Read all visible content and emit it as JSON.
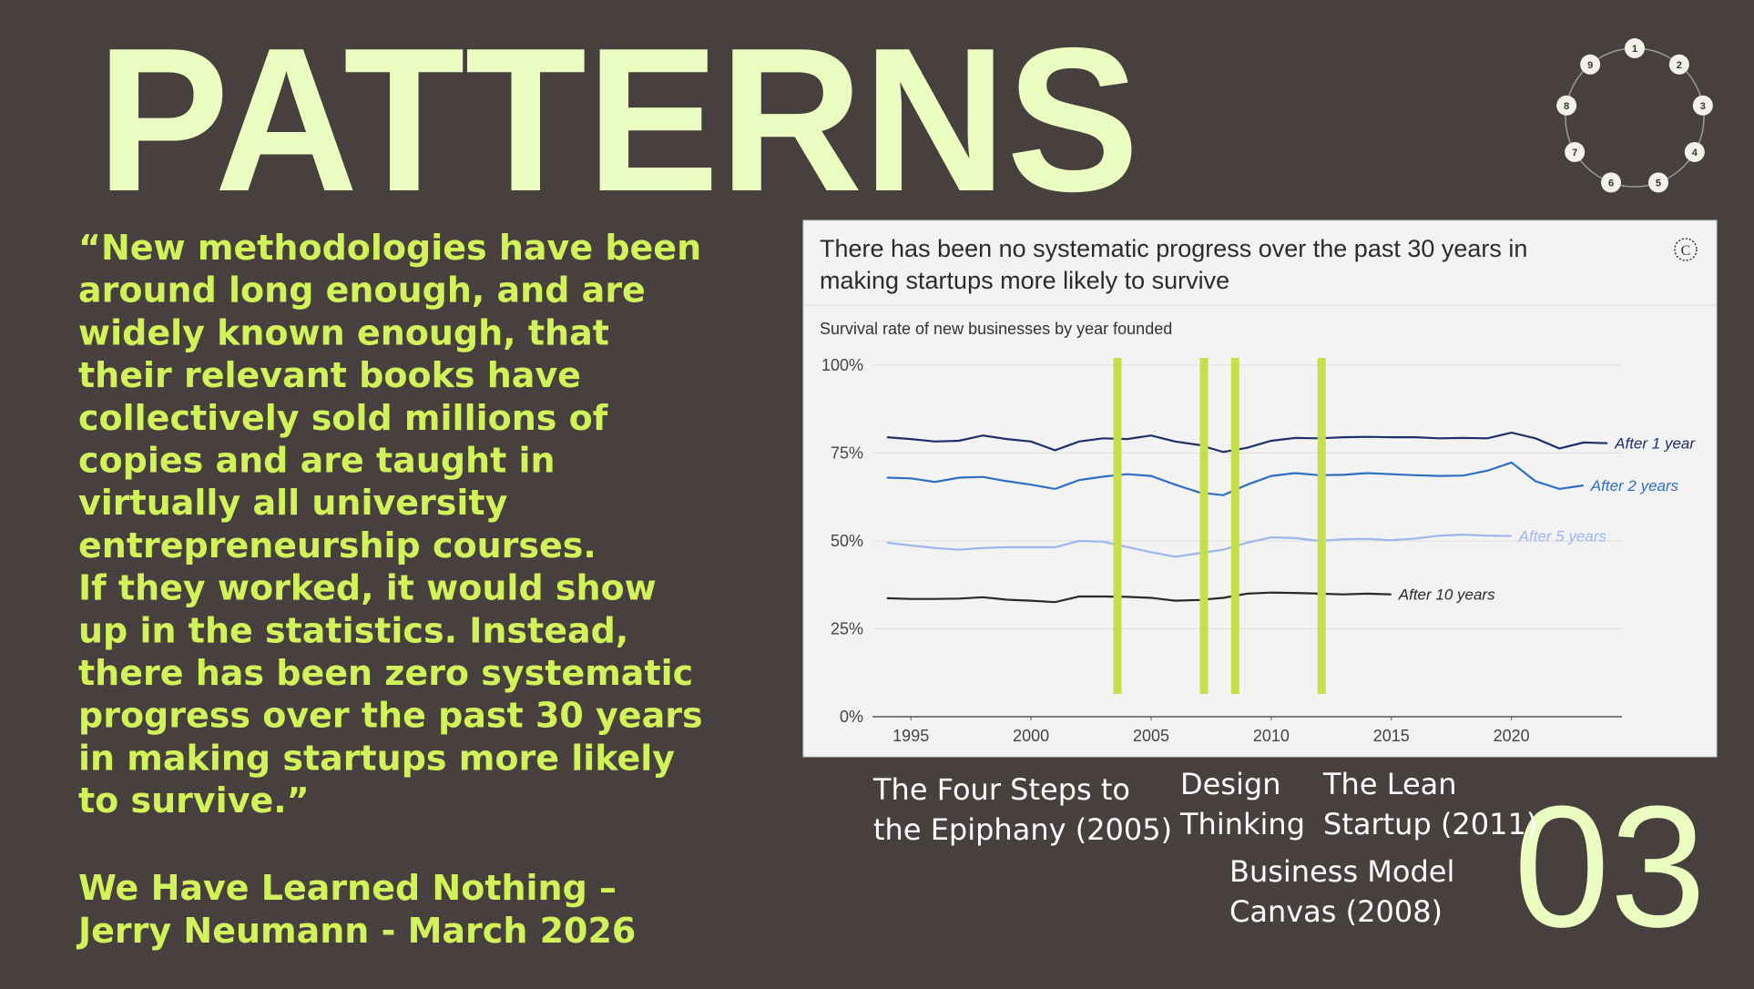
{
  "header": {
    "title": "PATTERNS",
    "page_number": "03"
  },
  "nav": {
    "items": [
      "1",
      "2",
      "3",
      "4",
      "5",
      "6",
      "7",
      "8",
      "9"
    ]
  },
  "quote": {
    "lines": [
      "“New methodologies have been",
      "around long enough, and are",
      "widely known enough, that",
      "their relevant books have",
      "collectively sold millions of",
      "copies and are taught in",
      "virtually all university",
      "entrepreneurship courses.",
      "If they worked, it would show",
      "up in the statistics. Instead,",
      "there has been zero systematic",
      "progress over the past 30 years",
      "in making startups more likely",
      "to survive.”"
    ],
    "source": [
      "We Have Learned Nothing –",
      "Jerry Neumann - March 2026"
    ]
  },
  "annotations": [
    {
      "lines": [
        "The Four Steps to",
        "the Epiphany (2005)"
      ]
    },
    {
      "lines": [
        "Design",
        "Thinking"
      ]
    },
    {
      "lines": [
        "The Lean",
        "Startup (2011)"
      ]
    },
    {
      "lines": [
        "Business Model",
        "Canvas (2008)"
      ]
    }
  ],
  "chart_data": {
    "type": "line",
    "title": [
      "There has been no systematic progress over the past 30 years in",
      "making startups more likely to survive"
    ],
    "subtitle": "Survival rate of new businesses by year founded",
    "x": [
      1994,
      1995,
      1996,
      1997,
      1998,
      1999,
      2000,
      2001,
      2002,
      2003,
      2004,
      2005,
      2006,
      2007,
      2008,
      2009,
      2010,
      2011,
      2012,
      2013,
      2014,
      2015,
      2016,
      2017,
      2018,
      2019,
      2020,
      2021,
      2022,
      2023,
      2024
    ],
    "series": [
      {
        "name": "After 1 year",
        "color": "#1f2f6b",
        "values": [
          79.5,
          79,
          78.3,
          78.5,
          80,
          79,
          78.3,
          75.8,
          78.3,
          79.2,
          79,
          80,
          78.3,
          77.3,
          75.3,
          76.5,
          78.5,
          79.3,
          79.2,
          79.5,
          79.6,
          79.5,
          79.5,
          79.2,
          79.3,
          79.2,
          80.8,
          79.2,
          76.3,
          78,
          77.8
        ]
      },
      {
        "name": "After 2 years",
        "color": "#2f6fc0",
        "values": [
          68,
          67.8,
          66.8,
          68,
          68.2,
          67,
          66,
          64.8,
          67.3,
          68.3,
          69,
          68.5,
          66,
          63.8,
          63,
          66,
          68.5,
          69.3,
          68.7,
          68.8,
          69.3,
          69,
          68.7,
          68.5,
          68.6,
          70,
          72.3,
          67,
          64.8,
          65.8,
          null
        ]
      },
      {
        "name": "After 5 years",
        "color": "#9fb5ee",
        "values": [
          49.5,
          48.7,
          48,
          47.5,
          48,
          48.2,
          48.2,
          48.2,
          50,
          49.8,
          48.3,
          46.8,
          45.5,
          46.5,
          47.5,
          49.5,
          51,
          50.8,
          50,
          50.5,
          50.6,
          50.2,
          50.7,
          51.5,
          51.8,
          51.5,
          51.4,
          null,
          null,
          null,
          null
        ]
      },
      {
        "name": "After 10 years",
        "color": "#2a2a2a",
        "values": [
          33.7,
          33.5,
          33.5,
          33.6,
          34,
          33.3,
          33,
          32.6,
          34.2,
          34.2,
          34.1,
          33.8,
          33,
          33.2,
          33.8,
          35,
          35.3,
          35.2,
          35,
          34.8,
          35,
          34.8,
          null,
          null,
          null,
          null,
          null,
          null,
          null,
          null,
          null
        ]
      }
    ],
    "highlights": [
      2003.6,
      2007.2,
      2008.5,
      2012.1
    ],
    "highlight_color": "#c6e04a",
    "xlim": [
      1993.4,
      2024.6
    ],
    "xticks": [
      1995,
      2000,
      2005,
      2010,
      2015,
      2020
    ],
    "ylim": [
      0,
      100
    ],
    "yticks": [
      {
        "value": 0,
        "label": "0%"
      },
      {
        "value": 25,
        "label": "25%"
      },
      {
        "value": 50,
        "label": "50%"
      },
      {
        "value": 75,
        "label": "75%"
      },
      {
        "value": 100,
        "label": "100%"
      }
    ],
    "grid": true
  }
}
